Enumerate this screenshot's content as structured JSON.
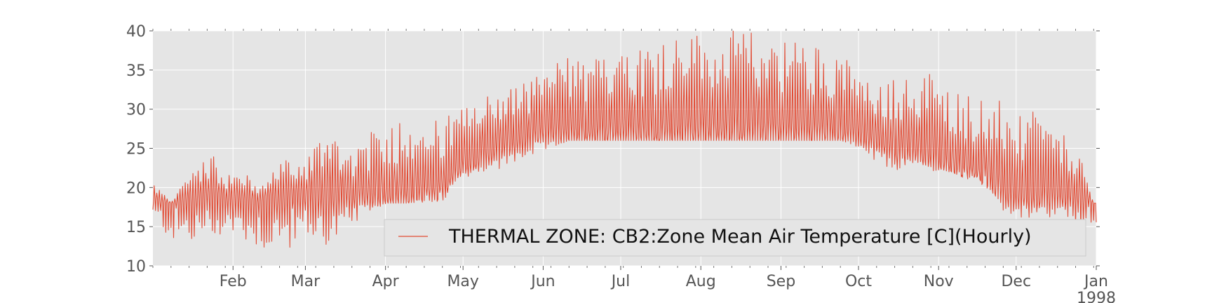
{
  "chart_data": {
    "type": "line",
    "title": "",
    "xlabel": "",
    "ylabel": "",
    "ylim": [
      10,
      40
    ],
    "yticks": [
      10,
      15,
      20,
      25,
      30,
      35,
      40
    ],
    "xlim": [
      "1997-01-01",
      "1998-01-01"
    ],
    "xticks": [
      {
        "date": "1997-02-01",
        "label": "Feb"
      },
      {
        "date": "1997-03-01",
        "label": "Mar"
      },
      {
        "date": "1997-04-01",
        "label": "Apr"
      },
      {
        "date": "1997-05-01",
        "label": "May"
      },
      {
        "date": "1997-06-01",
        "label": "Jun"
      },
      {
        "date": "1997-07-01",
        "label": "Jul"
      },
      {
        "date": "1997-08-01",
        "label": "Aug"
      },
      {
        "date": "1997-09-01",
        "label": "Sep"
      },
      {
        "date": "1997-10-01",
        "label": "Oct"
      },
      {
        "date": "1997-11-01",
        "label": "Nov"
      },
      {
        "date": "1997-12-01",
        "label": "Dec"
      },
      {
        "date": "1998-01-01",
        "label": "Jan"
      }
    ],
    "year_label": "1998",
    "grid": true,
    "legend_position": "lower right",
    "series": [
      {
        "name": "THERMAL ZONE: CB2:Zone Mean Air Temperature [C](Hourly)",
        "color": "#e24a33",
        "envelope": {
          "dates": [
            "1997-01-01",
            "1997-01-08",
            "1997-01-15",
            "1997-01-22",
            "1997-01-29",
            "1997-02-05",
            "1997-02-12",
            "1997-02-19",
            "1997-02-26",
            "1997-03-05",
            "1997-03-12",
            "1997-03-19",
            "1997-03-26",
            "1997-04-02",
            "1997-04-09",
            "1997-04-16",
            "1997-04-23",
            "1997-04-30",
            "1997-05-07",
            "1997-05-14",
            "1997-05-21",
            "1997-05-28",
            "1997-06-04",
            "1997-06-11",
            "1997-06-18",
            "1997-06-25",
            "1997-07-02",
            "1997-07-09",
            "1997-07-16",
            "1997-07-23",
            "1997-07-30",
            "1997-08-06",
            "1997-08-13",
            "1997-08-20",
            "1997-08-27",
            "1997-09-03",
            "1997-09-10",
            "1997-09-17",
            "1997-09-24",
            "1997-10-01",
            "1997-10-08",
            "1997-10-15",
            "1997-10-22",
            "1997-10-29",
            "1997-11-05",
            "1997-11-12",
            "1997-11-19",
            "1997-11-26",
            "1997-12-03",
            "1997-12-10",
            "1997-12-17",
            "1997-12-24",
            "1997-12-31"
          ],
          "high": [
            21,
            18,
            22,
            25,
            22,
            22,
            20,
            24,
            23,
            26,
            28,
            25,
            27,
            28,
            30,
            29,
            29,
            30,
            31,
            33,
            33,
            34,
            36,
            37,
            36,
            37,
            40,
            38,
            39,
            40,
            40,
            39,
            40,
            40,
            40,
            39,
            39,
            38,
            38,
            34,
            33,
            34,
            34,
            35,
            33,
            32,
            32,
            31,
            29,
            30,
            27,
            26,
            18
          ],
          "low": [
            16,
            13,
            12,
            13,
            14,
            13,
            12,
            11,
            13,
            13,
            12,
            15,
            17,
            18,
            18,
            19,
            20,
            21,
            22,
            22,
            23,
            24,
            25,
            26,
            26,
            26,
            26,
            26,
            26,
            26,
            26,
            26,
            26,
            26,
            26,
            26,
            26,
            26,
            26,
            25,
            23,
            22,
            23,
            22,
            22,
            22,
            22,
            17,
            16,
            16,
            16,
            15,
            13
          ],
          "floor": [
            18,
            18,
            18,
            18,
            18,
            18,
            18,
            18,
            18,
            18,
            18,
            18,
            18,
            18,
            18,
            18,
            18,
            22,
            23,
            24,
            25,
            26,
            26,
            26,
            26,
            26,
            26,
            26,
            26,
            26,
            26,
            26,
            26,
            26,
            26,
            26,
            26,
            26,
            26,
            26,
            25,
            24,
            24,
            23,
            22,
            21,
            20,
            18,
            18,
            18,
            18,
            18,
            18
          ]
        }
      }
    ]
  }
}
